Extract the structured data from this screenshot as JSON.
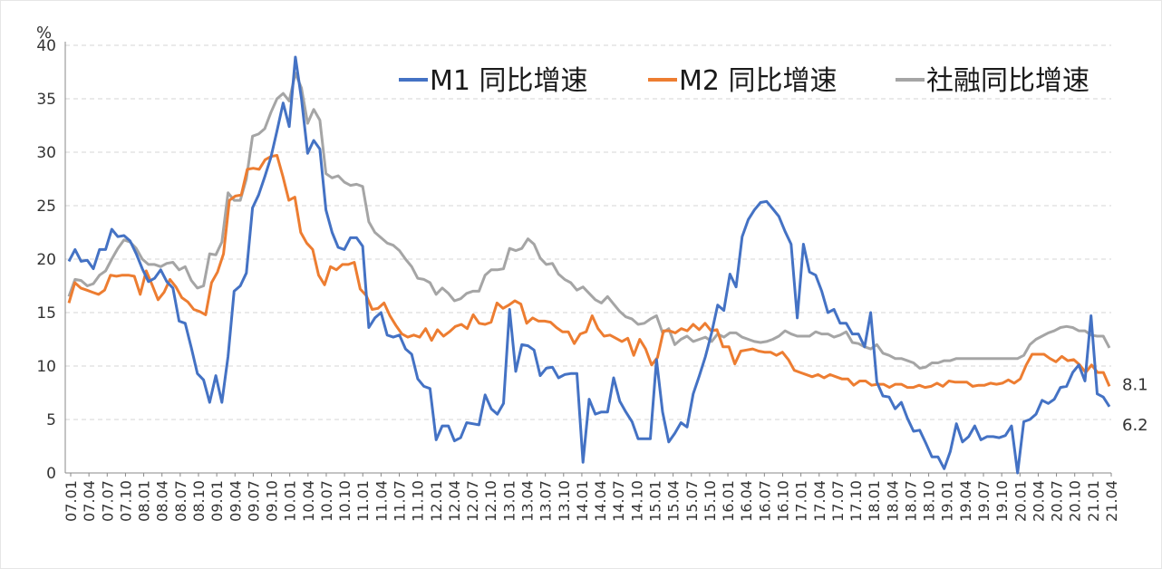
{
  "chart_data": {
    "type": "line",
    "unit_label": "%",
    "ylim": [
      0,
      40
    ],
    "y_ticks": [
      0,
      5,
      10,
      15,
      20,
      25,
      30,
      35,
      40
    ],
    "x_ticks": [
      "07.01",
      "07.04",
      "07.07",
      "07.10",
      "08.01",
      "08.04",
      "08.07",
      "08.10",
      "09.01",
      "09.04",
      "09.07",
      "09.10",
      "10.01",
      "10.04",
      "10.07",
      "10.10",
      "11.01",
      "11.04",
      "11.07",
      "11.10",
      "12.01",
      "12.04",
      "12.07",
      "12.10",
      "13.01",
      "13.04",
      "13.07",
      "13.10",
      "14.01",
      "14.04",
      "14.07",
      "14.10",
      "15.01",
      "15.04",
      "15.07",
      "15.10",
      "16.01",
      "16.04",
      "16.07",
      "16.10",
      "17.01",
      "17.04",
      "17.07",
      "17.10",
      "18.01",
      "18.04",
      "18.07",
      "18.10",
      "19.01",
      "19.04",
      "19.07",
      "19.10",
      "20.01",
      "20.04",
      "20.07",
      "20.10",
      "21.01",
      "21.04"
    ],
    "grid": "horizontal dashed",
    "legend_position": "top-right",
    "annotations": [
      {
        "text": "8.1",
        "series": "M2 同比增速"
      },
      {
        "text": "6.2",
        "series": "M1 同比增速"
      }
    ],
    "series": [
      {
        "name": "M1 同比增速",
        "color": "#4472C4",
        "values": [
          19.8,
          20.9,
          19.8,
          19.9,
          19.1,
          20.9,
          20.9,
          22.8,
          22.1,
          22.2,
          21.7,
          20.5,
          19.1,
          17.9,
          18.2,
          19.0,
          17.9,
          17.3,
          14.2,
          14.0,
          11.7,
          9.3,
          8.7,
          6.6,
          9.1,
          6.6,
          10.9,
          17.0,
          17.5,
          18.7,
          24.8,
          26.0,
          27.7,
          29.5,
          32.0,
          34.6,
          32.4,
          38.9,
          35.0,
          29.9,
          31.1,
          30.3,
          24.6,
          22.5,
          21.1,
          20.9,
          22.0,
          22.0,
          21.2,
          13.6,
          14.5,
          15.0,
          12.9,
          12.7,
          12.9,
          11.6,
          11.1,
          8.8,
          8.1,
          7.9,
          3.1,
          4.4,
          4.4,
          3.0,
          3.3,
          4.7,
          4.6,
          4.5,
          7.3,
          6.0,
          5.5,
          6.5,
          15.3,
          9.5,
          12.0,
          11.9,
          11.5,
          9.1,
          9.8,
          9.9,
          8.9,
          9.2,
          9.3,
          9.3,
          1.0,
          6.9,
          5.5,
          5.7,
          5.7,
          8.9,
          6.7,
          5.7,
          4.8,
          3.2,
          3.2,
          3.2,
          10.6,
          5.7,
          2.9,
          3.7,
          4.7,
          4.3,
          7.4,
          9.1,
          10.9,
          13.1,
          15.7,
          15.2,
          18.6,
          17.4,
          22.1,
          23.7,
          24.6,
          25.3,
          25.4,
          24.7,
          24.0,
          22.6,
          21.4,
          14.5,
          21.4,
          18.8,
          18.5,
          17.0,
          15.0,
          15.3,
          14.0,
          14.0,
          13.0,
          13.0,
          11.8,
          15.0,
          8.5,
          7.2,
          7.1,
          6.0,
          6.6,
          5.1,
          3.9,
          4.0,
          2.8,
          1.5,
          1.5,
          0.4,
          2.0,
          4.6,
          2.9,
          3.4,
          4.4,
          3.1,
          3.4,
          3.4,
          3.3,
          3.5,
          4.4,
          0.0,
          4.8,
          5.0,
          5.5,
          6.8,
          6.5,
          6.9,
          8.0,
          8.1,
          9.4,
          10.1,
          8.6,
          14.7,
          7.4,
          7.1,
          6.2
        ]
      },
      {
        "name": "M2 同比增速",
        "color": "#ED7D31",
        "values": [
          15.9,
          17.8,
          17.3,
          17.1,
          16.9,
          16.7,
          17.1,
          18.5,
          18.4,
          18.5,
          18.5,
          18.4,
          16.7,
          18.9,
          17.6,
          16.2,
          16.9,
          18.1,
          17.4,
          16.4,
          16.0,
          15.3,
          15.1,
          14.8,
          17.8,
          18.8,
          20.5,
          25.5,
          25.9,
          26.0,
          28.4,
          28.5,
          28.4,
          29.3,
          29.6,
          29.7,
          27.7,
          25.5,
          25.8,
          22.5,
          21.5,
          20.9,
          18.5,
          17.6,
          19.3,
          19.0,
          19.5,
          19.5,
          19.7,
          17.2,
          16.6,
          15.3,
          15.4,
          15.9,
          14.7,
          13.8,
          13.0,
          12.7,
          12.9,
          12.7,
          13.5,
          12.4,
          13.4,
          12.8,
          13.2,
          13.7,
          13.9,
          13.5,
          14.8,
          14.0,
          13.9,
          14.1,
          15.9,
          15.4,
          15.7,
          16.1,
          15.8,
          14.0,
          14.5,
          14.2,
          14.2,
          14.1,
          13.6,
          13.2,
          13.2,
          12.1,
          13.0,
          13.2,
          14.7,
          13.5,
          12.8,
          12.9,
          12.6,
          12.3,
          12.6,
          11.0,
          12.5,
          11.6,
          10.1,
          10.8,
          13.3,
          13.3,
          13.1,
          13.5,
          13.3,
          13.9,
          13.4,
          14.0,
          13.3,
          13.4,
          11.8,
          11.8,
          10.2,
          11.4,
          11.5,
          11.6,
          11.4,
          11.3,
          11.3,
          11.0,
          11.3,
          10.6,
          9.6,
          9.4,
          9.2,
          9.0,
          9.2,
          8.9,
          9.2,
          9.0,
          8.8,
          8.8,
          8.2,
          8.6,
          8.6,
          8.2,
          8.3,
          8.3,
          8.0,
          8.3,
          8.3,
          8.0,
          8.0,
          8.2,
          8.0,
          8.1,
          8.4,
          8.1,
          8.6,
          8.5,
          8.5,
          8.5,
          8.1,
          8.2,
          8.2,
          8.4,
          8.3,
          8.4,
          8.7,
          8.4,
          8.8,
          10.1,
          11.1,
          11.1,
          11.1,
          10.7,
          10.4,
          10.9,
          10.5,
          10.6,
          10.1,
          9.4,
          10.1,
          9.4,
          9.4,
          8.1
        ]
      },
      {
        "name": "社融同比增速",
        "color": "#A5A5A5",
        "values": [
          16.5,
          18.1,
          18.0,
          17.5,
          17.7,
          18.5,
          18.9,
          20.0,
          21.0,
          21.8,
          21.6,
          21.0,
          20.0,
          19.5,
          19.5,
          19.3,
          19.6,
          19.7,
          19.0,
          19.3,
          18.0,
          17.3,
          17.5,
          20.5,
          20.4,
          21.6,
          26.2,
          25.5,
          25.5,
          27.5,
          31.5,
          31.7,
          32.2,
          33.7,
          35.0,
          35.5,
          34.8,
          37.4,
          36.0,
          32.7,
          34.0,
          33.0,
          28.0,
          27.6,
          27.8,
          27.2,
          26.9,
          27.0,
          26.8,
          23.5,
          22.5,
          22.0,
          21.5,
          21.3,
          20.8,
          20.0,
          19.3,
          18.2,
          18.1,
          17.8,
          16.7,
          17.3,
          16.8,
          16.1,
          16.3,
          16.8,
          17.0,
          17.0,
          18.5,
          19.0,
          19.0,
          19.1,
          21.0,
          20.8,
          21.0,
          21.9,
          21.4,
          20.1,
          19.5,
          19.6,
          18.6,
          18.1,
          17.8,
          17.1,
          17.4,
          16.8,
          16.2,
          15.9,
          16.5,
          15.8,
          15.1,
          14.6,
          14.4,
          13.9,
          14.0,
          14.4,
          14.7,
          13.1,
          13.5,
          12.0,
          12.5,
          12.8,
          12.3,
          12.5,
          12.7,
          12.3,
          13.0,
          12.7,
          13.1,
          13.1,
          12.7,
          12.5,
          12.3,
          12.2,
          12.3,
          12.5,
          12.8,
          13.3,
          13.0,
          12.8,
          12.8,
          12.8,
          13.2,
          13.0,
          13.0,
          12.7,
          12.9,
          13.2,
          12.2,
          12.1,
          11.8,
          11.6,
          12.0,
          11.2,
          11.0,
          10.7,
          10.7,
          10.5,
          10.3,
          9.8,
          9.9,
          10.3,
          10.3,
          10.5,
          10.5,
          10.7,
          10.7,
          10.7,
          10.7,
          10.7,
          10.7,
          10.7,
          10.7,
          10.7,
          10.7,
          10.7,
          11.0,
          12.0,
          12.5,
          12.8,
          13.1,
          13.3,
          13.6,
          13.7,
          13.6,
          13.3,
          13.3,
          12.9,
          12.8,
          12.8,
          11.7
        ]
      }
    ]
  }
}
